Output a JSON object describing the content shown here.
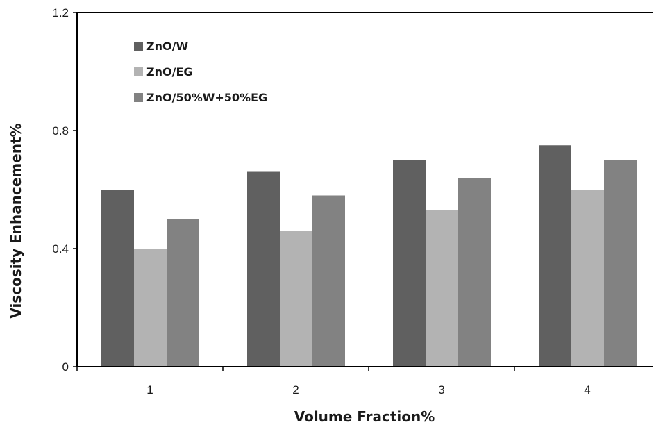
{
  "chart_data": {
    "type": "bar",
    "title": "",
    "xlabel": "Volume Fraction%",
    "ylabel": "Viscosity Enhancement%",
    "categories": [
      "1",
      "2",
      "3",
      "4"
    ],
    "ylim": [
      0,
      1.2
    ],
    "yticks": [
      0,
      0.4,
      0.8,
      1.2
    ],
    "ytick_labels": [
      "0",
      "0.4",
      "0.8",
      "1.2"
    ],
    "grid": false,
    "legend_position": "top-left",
    "series": [
      {
        "name": "ZnO/W",
        "values": [
          0.6,
          0.66,
          0.7,
          0.75
        ],
        "color": "#606060"
      },
      {
        "name": "ZnO/EG",
        "values": [
          0.4,
          0.46,
          0.53,
          0.6
        ],
        "color": "#b3b3b3"
      },
      {
        "name": "ZnO/50%W+50%EG",
        "values": [
          0.5,
          0.58,
          0.64,
          0.7
        ],
        "color": "#828282"
      }
    ]
  }
}
